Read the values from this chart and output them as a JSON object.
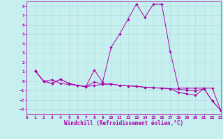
{
  "title": "",
  "xlabel": "Windchill (Refroidissement éolien,°C)",
  "background_color": "#c8efef",
  "line_color": "#aa00aa",
  "xlim": [
    0,
    23
  ],
  "ylim": [
    -3.5,
    8.5
  ],
  "xticks": [
    0,
    1,
    2,
    3,
    4,
    5,
    6,
    7,
    8,
    9,
    10,
    11,
    12,
    13,
    14,
    15,
    16,
    17,
    18,
    19,
    20,
    21,
    22,
    23
  ],
  "yticks": [
    -3,
    -2,
    -1,
    0,
    1,
    2,
    3,
    4,
    5,
    6,
    7,
    8
  ],
  "series": [
    {
      "x": [
        1,
        2,
        3,
        4,
        5,
        6,
        7,
        8,
        9,
        10,
        11,
        12,
        13,
        14,
        15,
        16,
        17,
        18,
        19,
        20,
        21,
        22,
        23
      ],
      "y": [
        1.1,
        0.0,
        0.15,
        -0.25,
        -0.35,
        -0.45,
        -0.55,
        -0.1,
        -0.3,
        -0.3,
        -0.45,
        -0.5,
        -0.55,
        -0.65,
        -0.7,
        -0.75,
        -0.8,
        -0.85,
        -0.95,
        -1.05,
        -0.8,
        -2.1,
        -3.1
      ]
    },
    {
      "x": [
        1,
        2,
        3,
        4,
        5,
        6,
        7,
        8,
        9,
        10,
        11,
        12,
        13,
        14,
        15,
        16,
        17,
        18,
        19,
        20,
        21,
        22,
        23
      ],
      "y": [
        1.1,
        0.0,
        -0.25,
        0.2,
        -0.25,
        -0.45,
        -0.6,
        1.2,
        -0.1,
        3.6,
        5.0,
        6.6,
        8.2,
        6.8,
        8.2,
        8.2,
        3.2,
        -0.75,
        -0.75,
        -0.75,
        -0.75,
        -0.75,
        -3.1
      ]
    },
    {
      "x": [
        1,
        2,
        3,
        4,
        5,
        6,
        7,
        8,
        9,
        10,
        11,
        12,
        13,
        14,
        15,
        16,
        17,
        18,
        19,
        20,
        21,
        22,
        23
      ],
      "y": [
        1.1,
        0.0,
        -0.25,
        0.2,
        -0.25,
        -0.45,
        -0.6,
        -0.45,
        -0.35,
        -0.3,
        -0.45,
        -0.5,
        -0.55,
        -0.65,
        -0.7,
        -0.75,
        -0.8,
        -1.2,
        -1.35,
        -1.5,
        -0.8,
        -2.1,
        -3.1
      ]
    }
  ],
  "grid_color": "#aadddd",
  "tick_fontsize": 4.5,
  "xlabel_fontsize": 5.5,
  "marker": "D",
  "marker_size": 1.8,
  "linewidth": 0.7
}
